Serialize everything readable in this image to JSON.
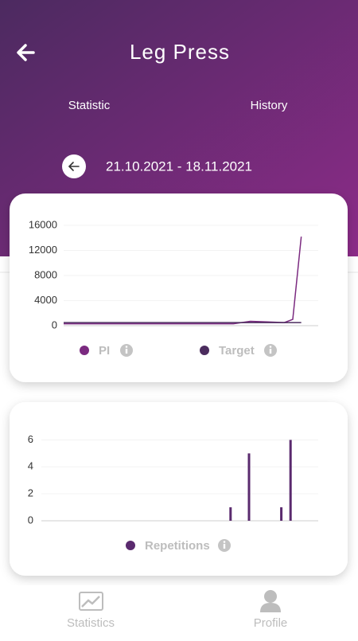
{
  "header": {
    "title": "Leg Press"
  },
  "tabs": [
    "Statistic",
    "History"
  ],
  "date_range": "21.10.2021 - 18.11.2021",
  "chart_data": [
    {
      "type": "line",
      "xlim": [
        0,
        30
      ],
      "x": [
        0,
        4,
        8,
        12,
        16,
        20,
        22,
        24,
        26,
        27,
        28
      ],
      "ylim": [
        0,
        16000
      ],
      "yticks": [
        0,
        4000,
        8000,
        12000,
        16000
      ],
      "grid": true,
      "series": [
        {
          "name": "PI",
          "color": "#7b2a80",
          "values": [
            300,
            300,
            300,
            300,
            300,
            300,
            700,
            600,
            500,
            1000,
            14200
          ]
        },
        {
          "name": "Target",
          "color": "#4b2c5e",
          "values": [
            500,
            500,
            500,
            500,
            500,
            500,
            500,
            500,
            500,
            500,
            500
          ]
        }
      ]
    },
    {
      "type": "bar",
      "xlim": [
        0,
        30
      ],
      "x": [
        20.5,
        22.5,
        26,
        27
      ],
      "ylim": [
        0,
        6.5
      ],
      "yticks": [
        0,
        2,
        4,
        6
      ],
      "grid": true,
      "series": [
        {
          "name": "Repetitions",
          "color": "#5a2a6e",
          "values": [
            1,
            5,
            1,
            6
          ]
        }
      ]
    }
  ],
  "nav": [
    "Statistics",
    "Profile"
  ]
}
